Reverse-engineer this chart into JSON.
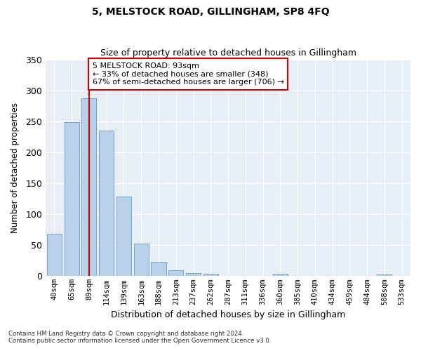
{
  "title1": "5, MELSTOCK ROAD, GILLINGHAM, SP8 4FQ",
  "title2": "Size of property relative to detached houses in Gillingham",
  "xlabel": "Distribution of detached houses by size in Gillingham",
  "ylabel": "Number of detached properties",
  "footnote1": "Contains HM Land Registry data © Crown copyright and database right 2024.",
  "footnote2": "Contains public sector information licensed under the Open Government Licence v3.0.",
  "categories": [
    "40sqm",
    "65sqm",
    "89sqm",
    "114sqm",
    "139sqm",
    "163sqm",
    "188sqm",
    "213sqm",
    "237sqm",
    "262sqm",
    "287sqm",
    "311sqm",
    "336sqm",
    "360sqm",
    "385sqm",
    "410sqm",
    "434sqm",
    "459sqm",
    "484sqm",
    "508sqm",
    "533sqm"
  ],
  "values": [
    68,
    249,
    287,
    235,
    129,
    53,
    23,
    9,
    5,
    4,
    0,
    0,
    0,
    4,
    0,
    0,
    0,
    0,
    0,
    3,
    0
  ],
  "bar_color": "#b8d0e8",
  "bar_edge_color": "#6699cc",
  "highlight_index": 2,
  "highlight_line_color": "#cc0000",
  "annotation_text": "5 MELSTOCK ROAD: 93sqm\n← 33% of detached houses are smaller (348)\n67% of semi-detached houses are larger (706) →",
  "annotation_box_facecolor": "#ffffff",
  "annotation_box_edgecolor": "#cc0000",
  "ylim": [
    0,
    350
  ],
  "yticks": [
    0,
    50,
    100,
    150,
    200,
    250,
    300,
    350
  ],
  "fig_facecolor": "#ffffff",
  "plot_facecolor": "#e8eef5",
  "grid_color": "#ffffff"
}
